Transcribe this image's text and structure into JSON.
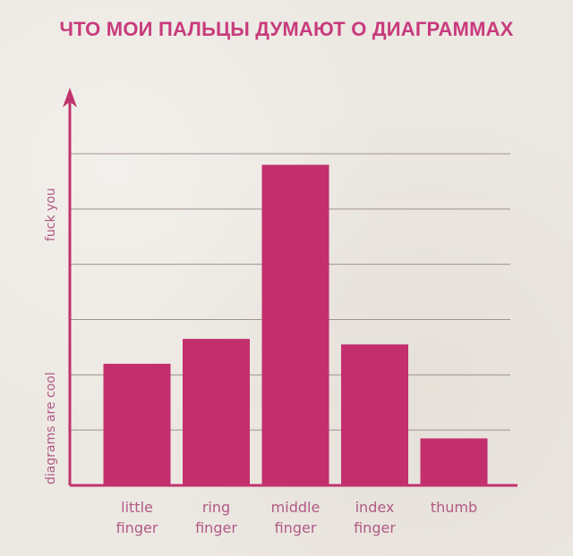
{
  "chart_data": {
    "type": "bar",
    "title": "ЧТО МОИ ПАЛЬЦЫ ДУМАЮТ О ДИАГРАММАХ",
    "categories": [
      [
        "little",
        "finger"
      ],
      [
        "ring",
        "finger"
      ],
      [
        "middle",
        "finger"
      ],
      [
        "index",
        "finger"
      ],
      [
        "thumb"
      ]
    ],
    "values": [
      2.2,
      2.65,
      5.8,
      2.55,
      0.85
    ],
    "ylim": [
      0,
      6
    ],
    "y_annotations": {
      "low": "diagrams are cool",
      "high": "fuck you"
    },
    "grid": true,
    "colors": {
      "bar": "#c22f6c",
      "axis": "#c0336f",
      "title": "#c83b7c",
      "labels": "#b15a86",
      "grid": "#a0908f"
    }
  }
}
